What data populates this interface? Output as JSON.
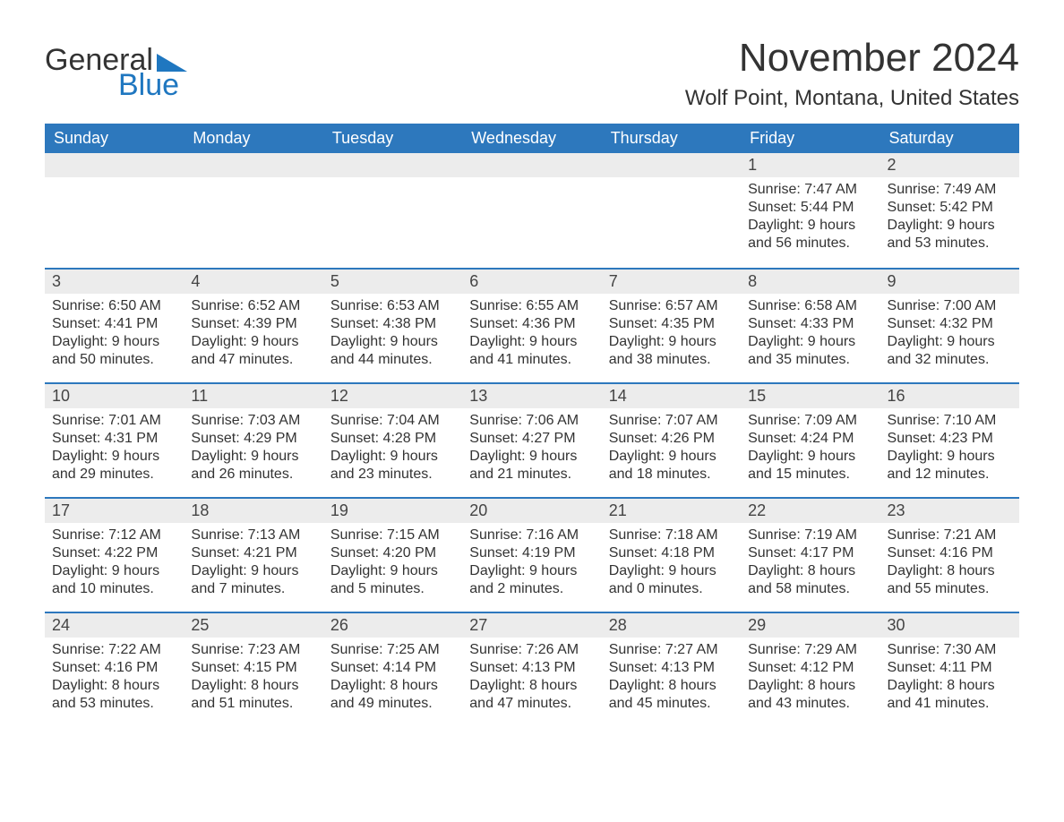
{
  "logo": {
    "word1": "General",
    "word2": "Blue",
    "accent_color": "#1f77c0"
  },
  "title": "November 2024",
  "location": "Wolf Point, Montana, United States",
  "colors": {
    "header_bg": "#2d78bd",
    "header_text": "#ffffff",
    "week_divider": "#2d78bd",
    "daynum_bg": "#ececec",
    "text": "#333333",
    "page_bg": "#ffffff"
  },
  "typography": {
    "title_fontsize_pt": 33,
    "location_fontsize_pt": 18,
    "header_fontsize_pt": 14,
    "body_fontsize_pt": 12
  },
  "day_labels": [
    "Sunday",
    "Monday",
    "Tuesday",
    "Wednesday",
    "Thursday",
    "Friday",
    "Saturday"
  ],
  "weeks": [
    [
      null,
      null,
      null,
      null,
      null,
      {
        "n": "1",
        "sunrise": "7:47 AM",
        "sunset": "5:44 PM",
        "daylight": "9 hours and 56 minutes."
      },
      {
        "n": "2",
        "sunrise": "7:49 AM",
        "sunset": "5:42 PM",
        "daylight": "9 hours and 53 minutes."
      }
    ],
    [
      {
        "n": "3",
        "sunrise": "6:50 AM",
        "sunset": "4:41 PM",
        "daylight": "9 hours and 50 minutes."
      },
      {
        "n": "4",
        "sunrise": "6:52 AM",
        "sunset": "4:39 PM",
        "daylight": "9 hours and 47 minutes."
      },
      {
        "n": "5",
        "sunrise": "6:53 AM",
        "sunset": "4:38 PM",
        "daylight": "9 hours and 44 minutes."
      },
      {
        "n": "6",
        "sunrise": "6:55 AM",
        "sunset": "4:36 PM",
        "daylight": "9 hours and 41 minutes."
      },
      {
        "n": "7",
        "sunrise": "6:57 AM",
        "sunset": "4:35 PM",
        "daylight": "9 hours and 38 minutes."
      },
      {
        "n": "8",
        "sunrise": "6:58 AM",
        "sunset": "4:33 PM",
        "daylight": "9 hours and 35 minutes."
      },
      {
        "n": "9",
        "sunrise": "7:00 AM",
        "sunset": "4:32 PM",
        "daylight": "9 hours and 32 minutes."
      }
    ],
    [
      {
        "n": "10",
        "sunrise": "7:01 AM",
        "sunset": "4:31 PM",
        "daylight": "9 hours and 29 minutes."
      },
      {
        "n": "11",
        "sunrise": "7:03 AM",
        "sunset": "4:29 PM",
        "daylight": "9 hours and 26 minutes."
      },
      {
        "n": "12",
        "sunrise": "7:04 AM",
        "sunset": "4:28 PM",
        "daylight": "9 hours and 23 minutes."
      },
      {
        "n": "13",
        "sunrise": "7:06 AM",
        "sunset": "4:27 PM",
        "daylight": "9 hours and 21 minutes."
      },
      {
        "n": "14",
        "sunrise": "7:07 AM",
        "sunset": "4:26 PM",
        "daylight": "9 hours and 18 minutes."
      },
      {
        "n": "15",
        "sunrise": "7:09 AM",
        "sunset": "4:24 PM",
        "daylight": "9 hours and 15 minutes."
      },
      {
        "n": "16",
        "sunrise": "7:10 AM",
        "sunset": "4:23 PM",
        "daylight": "9 hours and 12 minutes."
      }
    ],
    [
      {
        "n": "17",
        "sunrise": "7:12 AM",
        "sunset": "4:22 PM",
        "daylight": "9 hours and 10 minutes."
      },
      {
        "n": "18",
        "sunrise": "7:13 AM",
        "sunset": "4:21 PM",
        "daylight": "9 hours and 7 minutes."
      },
      {
        "n": "19",
        "sunrise": "7:15 AM",
        "sunset": "4:20 PM",
        "daylight": "9 hours and 5 minutes."
      },
      {
        "n": "20",
        "sunrise": "7:16 AM",
        "sunset": "4:19 PM",
        "daylight": "9 hours and 2 minutes."
      },
      {
        "n": "21",
        "sunrise": "7:18 AM",
        "sunset": "4:18 PM",
        "daylight": "9 hours and 0 minutes."
      },
      {
        "n": "22",
        "sunrise": "7:19 AM",
        "sunset": "4:17 PM",
        "daylight": "8 hours and 58 minutes."
      },
      {
        "n": "23",
        "sunrise": "7:21 AM",
        "sunset": "4:16 PM",
        "daylight": "8 hours and 55 minutes."
      }
    ],
    [
      {
        "n": "24",
        "sunrise": "7:22 AM",
        "sunset": "4:16 PM",
        "daylight": "8 hours and 53 minutes."
      },
      {
        "n": "25",
        "sunrise": "7:23 AM",
        "sunset": "4:15 PM",
        "daylight": "8 hours and 51 minutes."
      },
      {
        "n": "26",
        "sunrise": "7:25 AM",
        "sunset": "4:14 PM",
        "daylight": "8 hours and 49 minutes."
      },
      {
        "n": "27",
        "sunrise": "7:26 AM",
        "sunset": "4:13 PM",
        "daylight": "8 hours and 47 minutes."
      },
      {
        "n": "28",
        "sunrise": "7:27 AM",
        "sunset": "4:13 PM",
        "daylight": "8 hours and 45 minutes."
      },
      {
        "n": "29",
        "sunrise": "7:29 AM",
        "sunset": "4:12 PM",
        "daylight": "8 hours and 43 minutes."
      },
      {
        "n": "30",
        "sunrise": "7:30 AM",
        "sunset": "4:11 PM",
        "daylight": "8 hours and 41 minutes."
      }
    ]
  ],
  "field_labels": {
    "sunrise": "Sunrise: ",
    "sunset": "Sunset: ",
    "daylight": "Daylight: "
  }
}
